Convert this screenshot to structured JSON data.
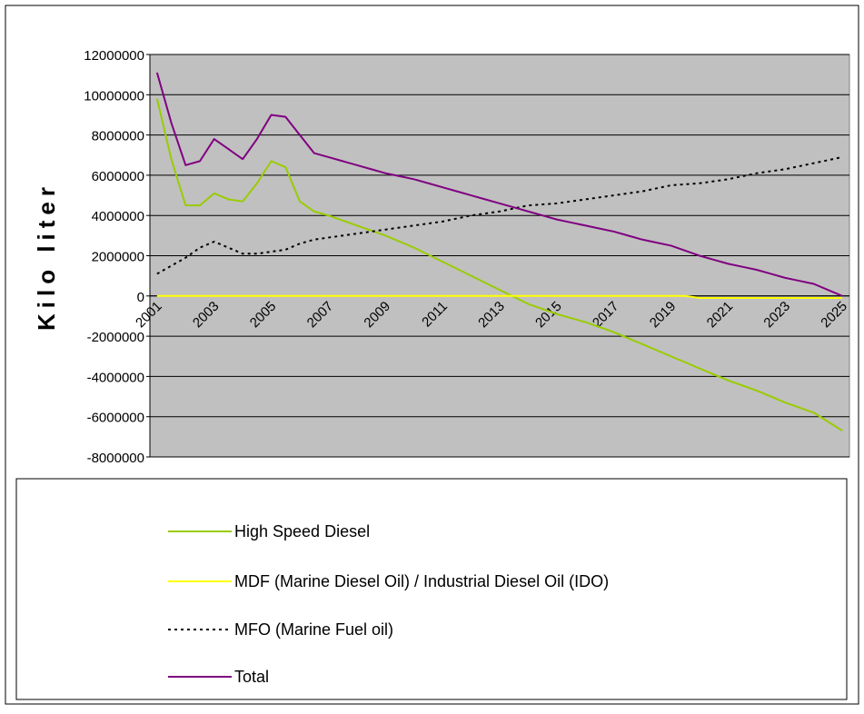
{
  "chart_data": {
    "type": "line",
    "y_label": "Kilo liter",
    "categories": [
      "2001",
      null,
      null,
      null,
      "2003",
      null,
      null,
      null,
      "2005",
      null,
      null,
      null,
      "2007",
      null,
      null,
      null,
      "2009",
      null,
      null,
      null,
      "2011",
      null,
      null,
      null,
      "2013",
      null,
      null,
      null,
      "2015",
      null,
      null,
      null,
      "2017",
      null,
      null,
      null,
      "2019",
      null,
      null,
      null,
      "2021",
      null,
      null,
      null,
      "2023",
      null,
      null,
      null,
      "2025"
    ],
    "ylim": [
      -8000000,
      12000000
    ],
    "yticks": [
      -8000000,
      -6000000,
      -4000000,
      -2000000,
      0,
      2000000,
      4000000,
      6000000,
      8000000,
      10000000,
      12000000
    ],
    "grid": true,
    "series": [
      {
        "name": "High Speed Diesel",
        "color": "#99cc00",
        "dash": false,
        "values": [
          9800000,
          6800000,
          4500000,
          4500000,
          5100000,
          4800000,
          4700000,
          5600000,
          6700000,
          6400000,
          4700000,
          4200000,
          4000000,
          3750000,
          3500000,
          3250000,
          3000000,
          2700000,
          2400000,
          2050000,
          1700000,
          1350000,
          1000000,
          650000,
          300000,
          -50000,
          -400000,
          -650000,
          -900000,
          -1100000,
          -1300000,
          -1550000,
          -1800000,
          -2100000,
          -2400000,
          -2700000,
          -3000000,
          -3300000,
          -3600000,
          -3900000,
          -4200000,
          -4450000,
          -4700000,
          -5000000,
          -5300000,
          -5550000,
          -5800000,
          -6250000,
          -6700000
        ]
      },
      {
        "name": "MDF (Marine Diesel Oil) / Industrial Diesel Oil (IDO)",
        "color": "#ffff00",
        "dash": false,
        "values": [
          0,
          0,
          0,
          0,
          0,
          0,
          0,
          0,
          0,
          0,
          0,
          0,
          0,
          0,
          0,
          0,
          0,
          0,
          0,
          0,
          0,
          0,
          0,
          0,
          0,
          0,
          0,
          0,
          0,
          0,
          0,
          0,
          0,
          0,
          0,
          0,
          0,
          0,
          -100000,
          -100000,
          -100000,
          -100000,
          -100000,
          -100000,
          -100000,
          -100000,
          -100000,
          -100000,
          -100000
        ]
      },
      {
        "name": "MFO (Marine Fuel oil)",
        "color": "#000000",
        "dash": true,
        "values": [
          1100000,
          1500000,
          1900000,
          2400000,
          2700000,
          2400000,
          2100000,
          2100000,
          2200000,
          2300000,
          2600000,
          2800000,
          2900000,
          3000000,
          3100000,
          3200000,
          3300000,
          3400000,
          3500000,
          3600000,
          3700000,
          3850000,
          4000000,
          4100000,
          4200000,
          4350000,
          4500000,
          4550000,
          4600000,
          4700000,
          4800000,
          4900000,
          5000000,
          5100000,
          5200000,
          5350000,
          5500000,
          5550000,
          5600000,
          5700000,
          5800000,
          5950000,
          6100000,
          6200000,
          6300000,
          6450000,
          6600000,
          6750000,
          6900000
        ]
      },
      {
        "name": "Total",
        "color": "#800080",
        "dash": false,
        "values": [
          11100000,
          8600000,
          6500000,
          6700000,
          7800000,
          7300000,
          6800000,
          7800000,
          9000000,
          8900000,
          8000000,
          7100000,
          6900000,
          6700000,
          6500000,
          6300000,
          6100000,
          5950000,
          5800000,
          5600000,
          5400000,
          5200000,
          5000000,
          4800000,
          4600000,
          4400000,
          4200000,
          4000000,
          3800000,
          3650000,
          3500000,
          3350000,
          3200000,
          3000000,
          2800000,
          2650000,
          2500000,
          2250000,
          2000000,
          1800000,
          1600000,
          1450000,
          1300000,
          1100000,
          900000,
          750000,
          600000,
          300000,
          0
        ]
      }
    ]
  }
}
